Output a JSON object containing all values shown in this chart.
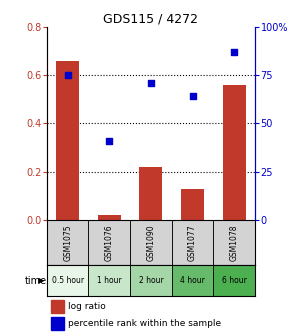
{
  "title": "GDS115 / 4272",
  "samples": [
    "GSM1075",
    "GSM1076",
    "GSM1090",
    "GSM1077",
    "GSM1078"
  ],
  "time_labels": [
    "0.5 hour",
    "1 hour",
    "2 hour",
    "4 hour",
    "6 hour"
  ],
  "log_ratio": [
    0.66,
    0.02,
    0.22,
    0.13,
    0.56
  ],
  "percentile": [
    75,
    41,
    71,
    64,
    87
  ],
  "bar_color": "#c0392b",
  "dot_color": "#0000cc",
  "left_ylim": [
    0,
    0.8
  ],
  "right_ylim": [
    0,
    100
  ],
  "left_yticks": [
    0,
    0.2,
    0.4,
    0.6,
    0.8
  ],
  "right_yticks": [
    0,
    25,
    50,
    75,
    100
  ],
  "right_yticklabels": [
    "0",
    "25",
    "50",
    "75",
    "100%"
  ],
  "time_colors": [
    "#e8f5e9",
    "#c8e6c9",
    "#a5d6a7",
    "#66bb6a",
    "#4caf50"
  ],
  "sample_cell_color": "#d3d3d3",
  "bar_width": 0.55
}
